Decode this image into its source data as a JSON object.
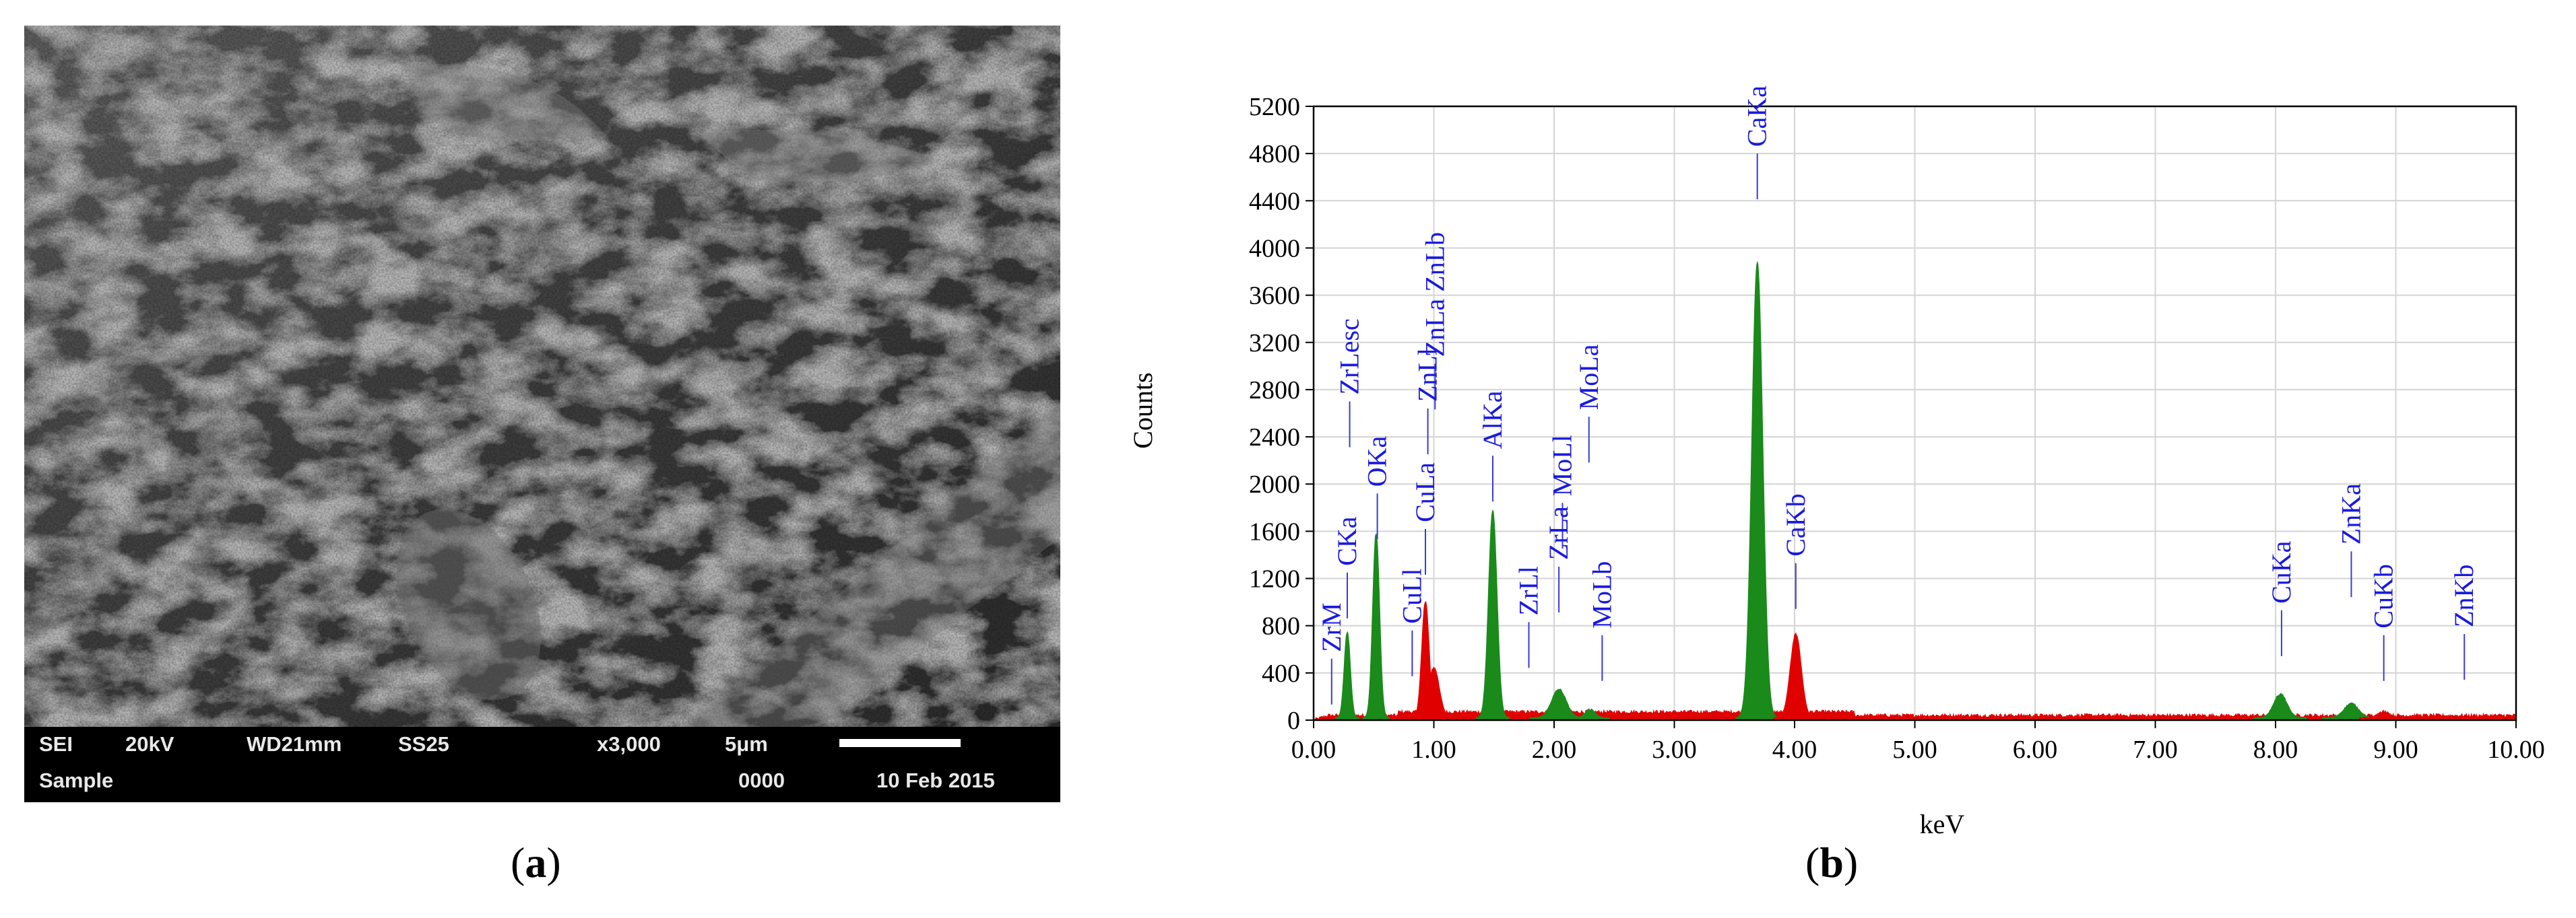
{
  "sem": {
    "info": {
      "mode": "SEI",
      "voltage": "20kV",
      "wd": "WD21mm",
      "spot": "SS25",
      "magnification": "x3,000",
      "scale": "5μm",
      "sample": "Sample",
      "number": "0000",
      "date": "10 Feb 2015"
    },
    "label": "a"
  },
  "eds": {
    "label": "b"
  },
  "chart_data": {
    "type": "area",
    "xlabel": "keV",
    "ylabel": "Counts",
    "xlim": [
      0,
      10
    ],
    "ylim": [
      0,
      5200
    ],
    "xticks": [
      "0.00",
      "1.00",
      "2.00",
      "3.00",
      "4.00",
      "5.00",
      "6.00",
      "7.00",
      "8.00",
      "9.00",
      "10.00"
    ],
    "yticks": [
      "0",
      "400",
      "800",
      "1200",
      "1600",
      "2000",
      "2400",
      "2800",
      "3200",
      "3600",
      "4000",
      "4400",
      "4800",
      "5200"
    ],
    "grid": true,
    "background_level": 40,
    "colors": {
      "background": "#e00000",
      "identified": "#1a8a1a",
      "label": "#1a1adf",
      "marker": "#3a3ad8"
    },
    "peaks": [
      {
        "x": 0.28,
        "y": 720,
        "w": 0.025,
        "color": "green"
      },
      {
        "x": 0.52,
        "y": 1560,
        "w": 0.028,
        "color": "green"
      },
      {
        "x": 0.93,
        "y": 980,
        "w": 0.03,
        "color": "red"
      },
      {
        "x": 1.0,
        "y": 420,
        "w": 0.045,
        "color": "red"
      },
      {
        "x": 1.49,
        "y": 1750,
        "w": 0.035,
        "color": "green"
      },
      {
        "x": 2.04,
        "y": 240,
        "w": 0.06,
        "color": "green"
      },
      {
        "x": 2.3,
        "y": 70,
        "w": 0.04,
        "color": "green"
      },
      {
        "x": 3.69,
        "y": 3860,
        "w": 0.045,
        "color": "green"
      },
      {
        "x": 4.01,
        "y": 710,
        "w": 0.045,
        "color": "red"
      },
      {
        "x": 8.04,
        "y": 200,
        "w": 0.055,
        "color": "green"
      },
      {
        "x": 8.63,
        "y": 120,
        "w": 0.06,
        "color": "green"
      },
      {
        "x": 8.9,
        "y": 50,
        "w": 0.05,
        "color": "red"
      }
    ],
    "element_labels": [
      {
        "text": "ZrM",
        "x": 0.15,
        "marker_y": 520
      },
      {
        "text": "CKa",
        "x": 0.28,
        "marker_y": 1250
      },
      {
        "text": "ZrLesc",
        "x": 0.3,
        "marker_y": 2700
      },
      {
        "text": "OKa",
        "x": 0.53,
        "marker_y": 1920
      },
      {
        "text": "CuLl",
        "x": 0.82,
        "marker_y": 760
      },
      {
        "text": "CuLa",
        "x": 0.93,
        "marker_y": 1620
      },
      {
        "text": "ZnLl",
        "x": 0.95,
        "marker_y": 2640
      },
      {
        "text": "ZnLa ZnLb",
        "x": 1.01,
        "marker_y": 3020
      },
      {
        "text": "AlKa",
        "x": 1.49,
        "marker_y": 2240
      },
      {
        "text": "ZrLl",
        "x": 1.79,
        "marker_y": 830
      },
      {
        "text": "ZrLa",
        "x": 2.04,
        "marker_y": 1300
      },
      {
        "text": "MoLl",
        "x": 2.07,
        "marker_y": 1840
      },
      {
        "text": "MoLa",
        "x": 2.29,
        "marker_y": 2570
      },
      {
        "text": "MoLb",
        "x": 2.4,
        "marker_y": 720
      },
      {
        "text": "CaKa",
        "x": 3.69,
        "marker_y": 4800
      },
      {
        "text": "CaKb",
        "x": 4.01,
        "marker_y": 1330
      },
      {
        "text": "CuKa",
        "x": 8.05,
        "marker_y": 930
      },
      {
        "text": "ZnKa",
        "x": 8.63,
        "marker_y": 1430
      },
      {
        "text": "CuKb",
        "x": 8.9,
        "marker_y": 720
      },
      {
        "text": "ZnKb",
        "x": 9.57,
        "marker_y": 730
      }
    ]
  }
}
